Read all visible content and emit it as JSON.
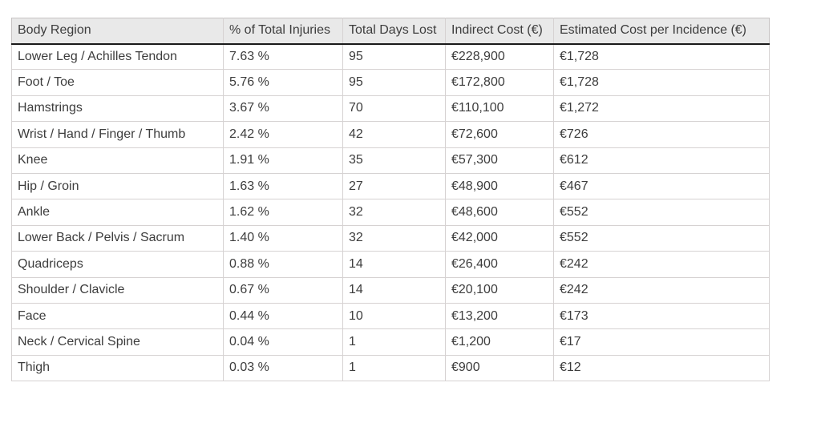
{
  "chart_data": {
    "type": "table",
    "columns": [
      "Body Region",
      "% of Total Injuries",
      "Total Days Lost",
      "Indirect Cost (€)",
      "Estimated Cost per Incidence (€)"
    ],
    "rows": [
      [
        "Lower Leg / Achilles Tendon",
        "7.63 %",
        "95",
        "€228,900",
        "€1,728"
      ],
      [
        "Foot / Toe",
        "5.76 %",
        "95",
        "€172,800",
        "€1,728"
      ],
      [
        "Hamstrings",
        "3.67 %",
        "70",
        "€110,100",
        "€1,272"
      ],
      [
        "Wrist / Hand / Finger / Thumb",
        "2.42 %",
        "42",
        "€72,600",
        "€726"
      ],
      [
        "Knee",
        "1.91 %",
        "35",
        "€57,300",
        "€612"
      ],
      [
        "Hip / Groin",
        "1.63 %",
        "27",
        "€48,900",
        "€467"
      ],
      [
        "Ankle",
        "1.62 %",
        "32",
        "€48,600",
        "€552"
      ],
      [
        "Lower Back / Pelvis / Sacrum",
        "1.40 %",
        "32",
        "€42,000",
        "€552"
      ],
      [
        "Quadriceps",
        "0.88 %",
        "14",
        "€26,400",
        "€242"
      ],
      [
        "Shoulder / Clavicle",
        "0.67 %",
        "14",
        "€20,100",
        "€242"
      ],
      [
        "Face",
        "0.44 %",
        "10",
        "€13,200",
        "€173"
      ],
      [
        "Neck / Cervical Spine",
        "0.04 %",
        "1",
        "€1,200",
        "€17"
      ],
      [
        "Thigh",
        "0.03 %",
        "1",
        "€900",
        "€12"
      ]
    ]
  },
  "colors": {
    "header_bg": "#e9e9e9",
    "grid_border": "#d6d2d2",
    "header_rule": "#1a1a1a",
    "text": "#3d3d3d"
  }
}
